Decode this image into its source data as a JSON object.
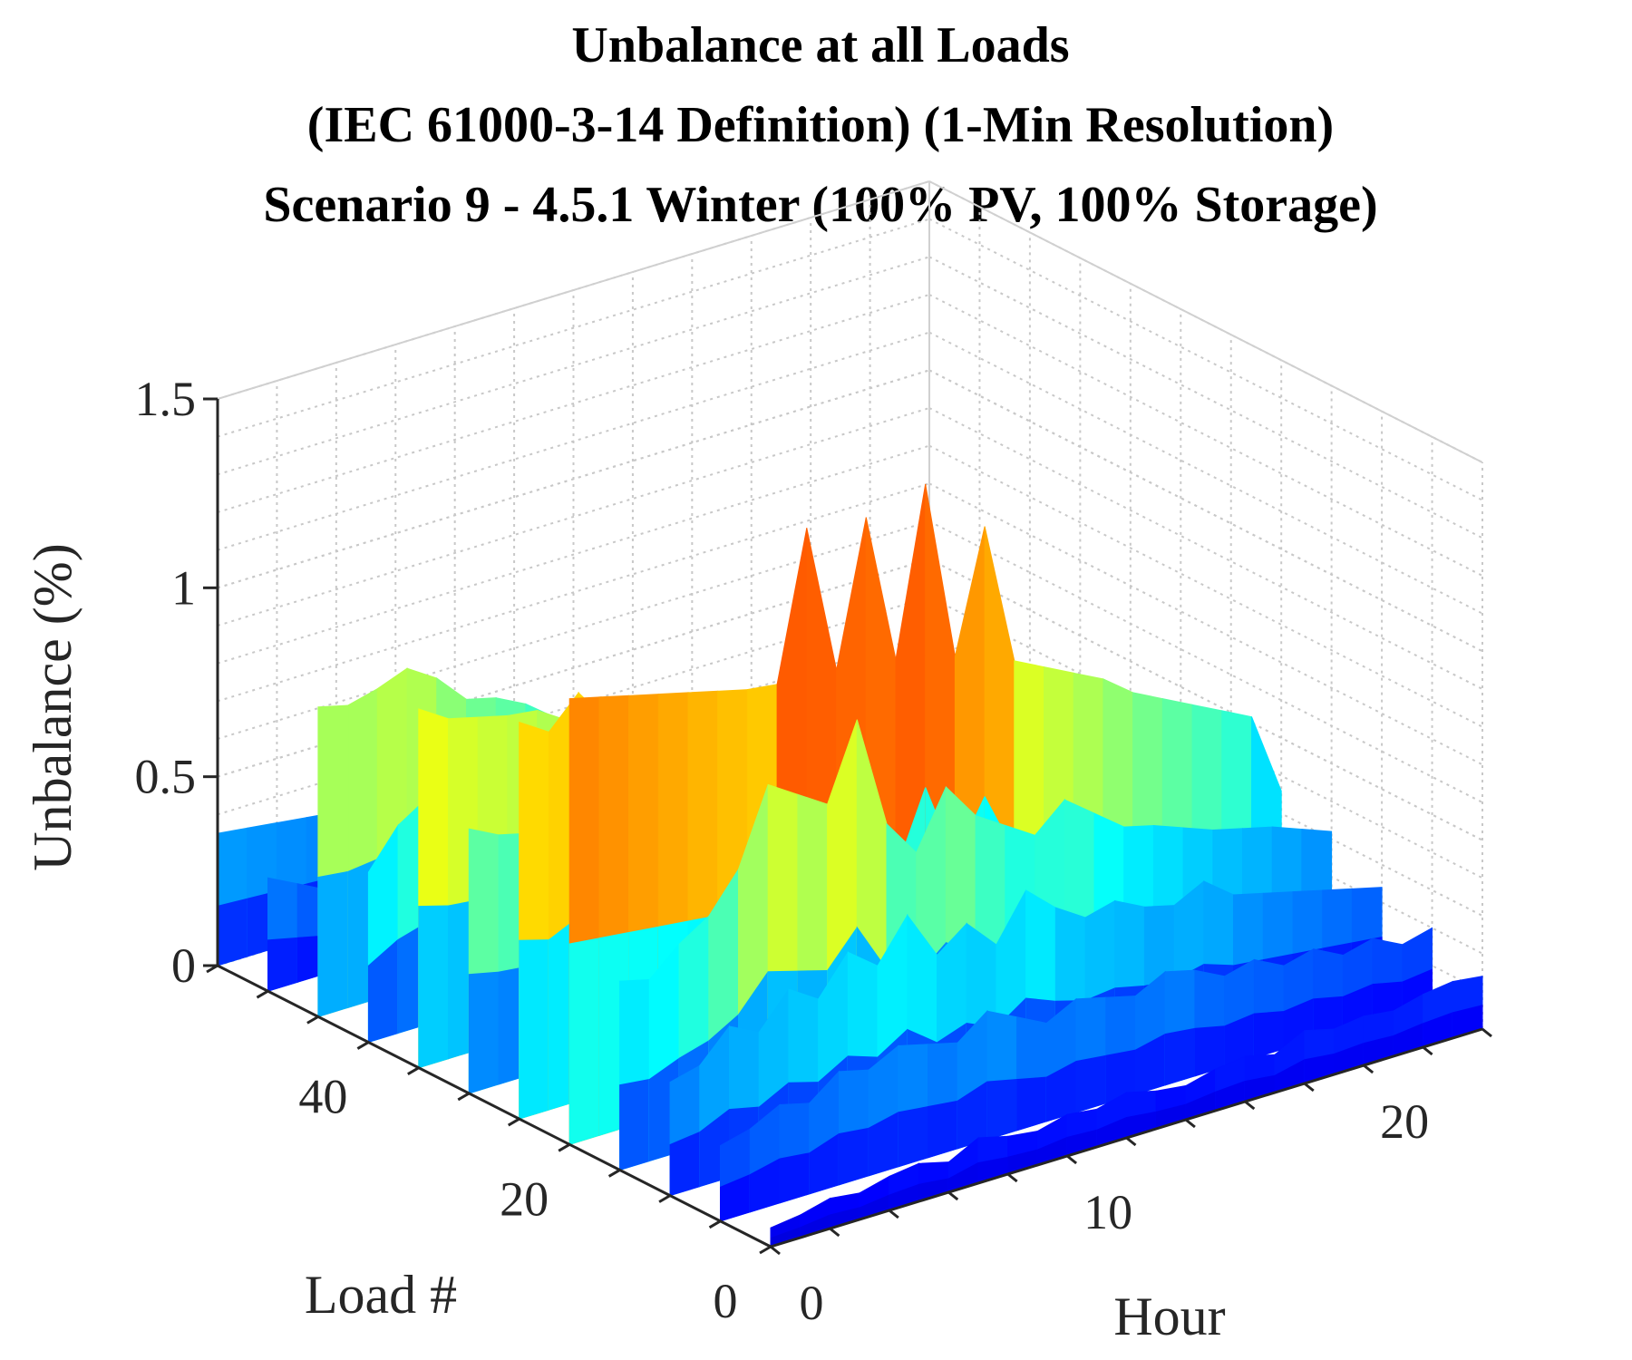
{
  "chart_data": {
    "type": "surface3d",
    "title_lines": [
      "Unbalance at all Loads",
      "(IEC 61000-3-14 Definition) (1-Min Resolution)",
      "Scenario 9 - 4.5.1 Winter (100% PV, 100% Storage)"
    ],
    "xlabel": "Hour",
    "ylabel": "Load #",
    "zlabel": "Unbalance (%)",
    "xlim": [
      0,
      24
    ],
    "ylim": [
      0,
      55
    ],
    "zlim": [
      0,
      1.5
    ],
    "x_ticks": [
      0,
      10,
      20
    ],
    "y_ticks": [
      0,
      20,
      40
    ],
    "z_ticks": [
      0,
      0.5,
      1,
      1.5
    ],
    "x_tick_labels": [
      "0",
      "10",
      "20"
    ],
    "y_tick_labels": [
      "0",
      "20",
      "40"
    ],
    "z_tick_labels": [
      "0",
      "0.5",
      "1",
      "1.5"
    ],
    "colormap": "jet",
    "grid": true,
    "ridges": [
      {
        "load": 55,
        "values": [
          0.35,
          0.34,
          0.33,
          0.32,
          0.31,
          0.3,
          0.28,
          0.27,
          0.26,
          0.24,
          0.22,
          0.2,
          0.18,
          0.16,
          0.14,
          0.12,
          0.1,
          0.08,
          0.07,
          0.06,
          0.05,
          0.05,
          0.05,
          0.05,
          0.05
        ]
      },
      {
        "load": 50,
        "values": [
          0.3,
          0.26,
          0.22,
          0.18,
          0.16,
          0.15,
          0.14,
          0.14,
          0.13,
          0.12,
          0.11,
          0.1,
          0.09,
          0.08,
          0.07,
          0.06,
          0.06,
          0.05,
          0.05,
          0.05,
          0.05,
          0.05,
          0.05,
          0.05,
          0.05
        ]
      },
      {
        "load": 45,
        "values": [
          0.82,
          0.8,
          0.82,
          0.85,
          0.8,
          0.72,
          0.7,
          0.66,
          0.6,
          0.56,
          0.5,
          0.44,
          0.38,
          0.3,
          0.25,
          0.2,
          0.16,
          0.12,
          0.1,
          0.08,
          0.07,
          0.06,
          0.06,
          0.05,
          0.05
        ]
      },
      {
        "load": 40,
        "values": [
          0.45,
          0.55,
          0.6,
          0.62,
          0.58,
          0.5,
          0.46,
          0.4,
          0.36,
          0.32,
          0.28,
          0.22,
          0.18,
          0.15,
          0.12,
          0.1,
          0.08,
          0.07,
          0.06,
          0.06,
          0.05,
          0.05,
          0.05,
          0.05,
          0.05
        ]
      },
      {
        "load": 35,
        "values": [
          0.95,
          0.9,
          0.88,
          0.86,
          0.85,
          0.8,
          0.76,
          0.7,
          0.66,
          0.6,
          0.55,
          0.5,
          0.44,
          0.38,
          0.32,
          0.26,
          0.2,
          0.15,
          0.12,
          0.1,
          0.08,
          0.07,
          0.06,
          0.06,
          0.05
        ]
      },
      {
        "load": 30,
        "values": [
          0.7,
          0.66,
          0.64,
          0.62,
          0.6,
          0.7,
          0.58,
          0.55,
          0.52,
          0.48,
          0.44,
          0.4,
          0.36,
          0.32,
          0.28,
          0.24,
          0.2,
          0.17,
          0.14,
          0.11,
          0.09,
          0.08,
          0.07,
          0.06,
          0.06
        ]
      },
      {
        "load": 25,
        "values": [
          1.05,
          1.0,
          1.08,
          0.98,
          0.95,
          0.92,
          0.9,
          0.86,
          0.82,
          0.78,
          0.74,
          0.7,
          0.65,
          0.6,
          0.55,
          0.5,
          0.45,
          0.4,
          0.35,
          0.3,
          0.26,
          0.22,
          0.18,
          0.14,
          0.1
        ]
      },
      {
        "load": 20,
        "values": [
          1.18,
          1.16,
          1.14,
          1.12,
          1.1,
          1.08,
          1.06,
          1.05,
          1.44,
          1.04,
          1.42,
          1.02,
          1.46,
          0.98,
          1.3,
          0.92,
          0.88,
          0.84,
          0.8,
          0.74,
          0.7,
          0.66,
          0.62,
          0.58,
          0.36
        ]
      },
      {
        "load": 15,
        "values": [
          0.5,
          0.48,
          0.55,
          0.6,
          0.7,
          0.9,
          0.85,
          0.8,
          1.0,
          0.7,
          0.6,
          0.75,
          0.65,
          0.6,
          0.55,
          0.62,
          0.56,
          0.5,
          0.48,
          0.45,
          0.42,
          0.4,
          0.38,
          0.35,
          0.32
        ]
      },
      {
        "load": 10,
        "values": [
          0.3,
          0.32,
          0.4,
          0.36,
          0.45,
          0.4,
          0.5,
          0.44,
          0.55,
          0.42,
          0.48,
          0.4,
          0.52,
          0.45,
          0.4,
          0.42,
          0.38,
          0.36,
          0.4,
          0.34,
          0.32,
          0.3,
          0.28,
          0.26,
          0.24
        ]
      },
      {
        "load": 5,
        "values": [
          0.2,
          0.22,
          0.26,
          0.24,
          0.3,
          0.28,
          0.32,
          0.3,
          0.28,
          0.34,
          0.3,
          0.26,
          0.3,
          0.28,
          0.26,
          0.3,
          0.28,
          0.24,
          0.26,
          0.22,
          0.24,
          0.2,
          0.22,
          0.18,
          0.2
        ]
      },
      {
        "load": 0,
        "values": [
          0.05,
          0.06,
          0.08,
          0.07,
          0.09,
          0.1,
          0.08,
          0.12,
          0.1,
          0.09,
          0.11,
          0.1,
          0.12,
          0.1,
          0.09,
          0.11,
          0.12,
          0.1,
          0.14,
          0.12,
          0.13,
          0.12,
          0.14,
          0.15,
          0.14
        ]
      }
    ]
  }
}
